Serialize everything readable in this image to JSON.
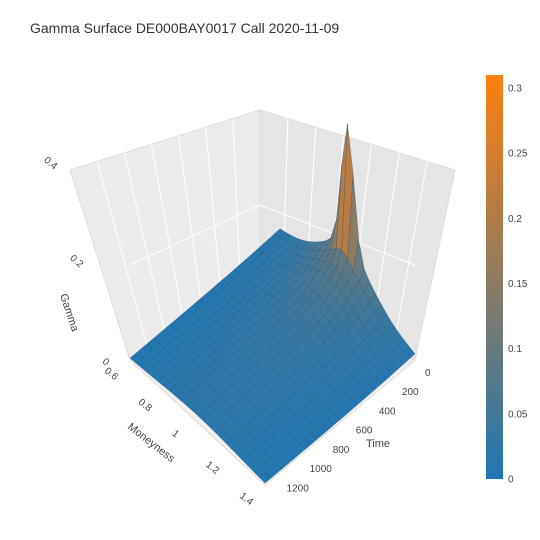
{
  "title": "Gamma Surface DE000BAY0017 Call 2020-11-09",
  "chart_data": {
    "type": "surface",
    "title": "Gamma Surface DE000BAY0017 Call 2020-11-09",
    "x_axis": {
      "label": "Moneyness",
      "ticks": [
        "0.6",
        "0.8",
        "1",
        "1.2",
        "1.4"
      ],
      "range": [
        0.6,
        1.4
      ]
    },
    "y_axis": {
      "label": "Time",
      "ticks": [
        "0",
        "200",
        "400",
        "600",
        "800",
        "1000",
        "1200"
      ],
      "range": [
        0,
        1300
      ]
    },
    "z_axis": {
      "label": "Gamma",
      "ticks": [
        "0",
        "0.2",
        "0.4"
      ],
      "range": [
        0,
        0.4
      ]
    },
    "colorbar": {
      "ticks": [
        "0",
        "0.05",
        "0.1",
        "0.15",
        "0.2",
        "0.25",
        "0.3"
      ],
      "range": [
        0,
        0.31
      ],
      "colorscale": [
        "#1f77b4",
        "#ff7f0e"
      ]
    },
    "peak": {
      "moneyness": 1.0,
      "time": 0,
      "gamma": 0.3
    },
    "surface_shape": "gamma decays with time and distance from moneyness 1; sharp spike near time 0 at the money"
  }
}
